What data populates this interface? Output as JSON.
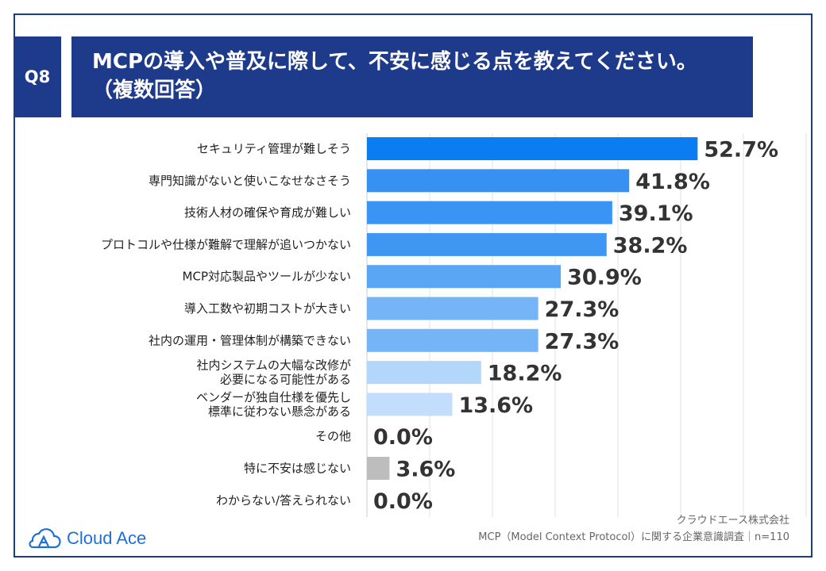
{
  "header": {
    "question_tag": "Q8",
    "title_line1": "MCPの導入や普及に際して、不安に感じる点を教えてください。",
    "title_line2": "（複数回答）"
  },
  "chart_data": {
    "type": "bar",
    "orientation": "horizontal",
    "title": "MCPの導入や普及に際して、不安に感じる点を教えてください。（複数回答）",
    "categories": [
      "セキュリティ管理が難しそう",
      "専門知識がないと使いこなせなさそう",
      "技術人材の確保や育成が難しい",
      "プロトコルや仕様が難解で理解が追いつかない",
      "MCP対応製品やツールが少ない",
      "導入工数や初期コストが大きい",
      "社内の運用・管理体制が構築できない",
      "社内システムの大幅な改修が\n必要になる可能性がある",
      "ベンダーが独自仕様を優先し\n標準に従わない懸念がある",
      "その他",
      "特に不安は感じない",
      "わからない/答えられない"
    ],
    "values": [
      52.7,
      41.8,
      39.1,
      38.2,
      30.9,
      27.3,
      27.3,
      18.2,
      13.6,
      0.0,
      3.6,
      0.0
    ],
    "value_labels": [
      "52.7%",
      "41.8%",
      "39.1%",
      "38.2%",
      "30.9%",
      "27.3%",
      "27.3%",
      "18.2%",
      "13.6%",
      "0.0%",
      "3.6%",
      "0.0%"
    ],
    "bar_colors": [
      "#0a7df3",
      "#3791f2",
      "#3a94f3",
      "#3f97f3",
      "#5aa6f5",
      "#74b4f7",
      "#74b4f7",
      "#b3d6fb",
      "#c2defc",
      "#c2defc",
      "#bdbdbd",
      "#c2defc"
    ],
    "xlim": [
      0,
      60
    ],
    "grid": true,
    "unit": "%"
  },
  "footer": {
    "company": "クラウドエース株式会社",
    "survey": "MCP（Model Context Protocol）に関する企業意識調査｜n=110",
    "logo_text": "Cloud Ace"
  }
}
